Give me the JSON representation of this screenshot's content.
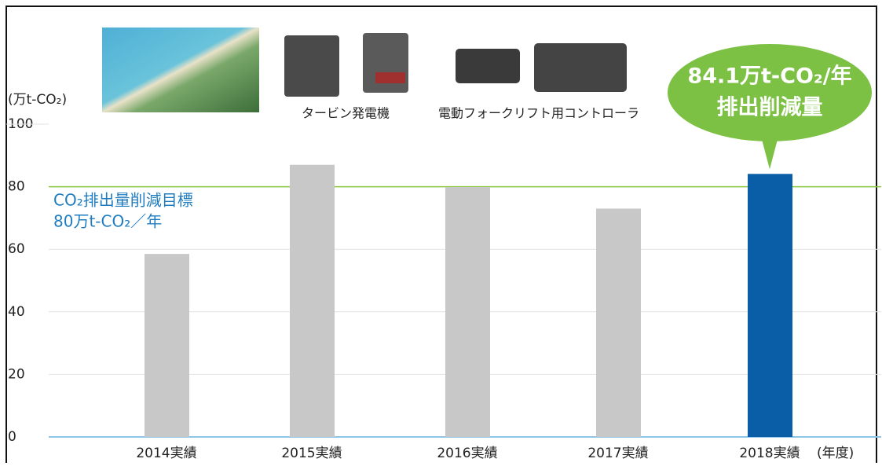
{
  "chart_data": {
    "type": "bar",
    "y_label": "(万t-CO₂)",
    "x_unit": "(年度)",
    "categories": [
      "2014実績",
      "2015実績",
      "2016実績",
      "2017実績",
      "2018実績"
    ],
    "values": [
      58.5,
      87,
      79.9,
      73,
      84.1
    ],
    "colors": [
      "#c8c8c8",
      "#c8c8c8",
      "#c8c8c8",
      "#c8c8c8",
      "#0a5ea8"
    ],
    "ylim": [
      0,
      100
    ],
    "yticks": [
      0,
      20,
      40,
      60,
      80,
      100
    ],
    "grid": true,
    "target": {
      "value": 80,
      "color": "#8cc63f",
      "lines": [
        "CO₂排出量削減目標",
        "80万t-CO₂／年"
      ]
    },
    "callout": {
      "lines": [
        "84.1万t-CO₂/年",
        "排出削減量"
      ],
      "color": "#7cc144"
    },
    "captions": [
      "タービン発電機",
      "電動フォークリフト用コントローラ"
    ]
  }
}
